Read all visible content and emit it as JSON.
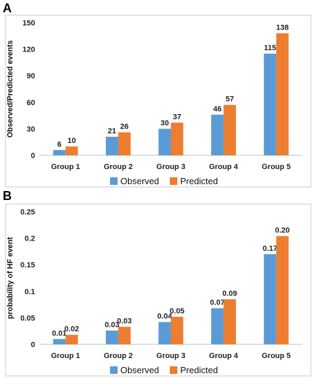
{
  "panels": {
    "a": {
      "letter": "A"
    },
    "b": {
      "letter": "B"
    }
  },
  "colors": {
    "observed": "#5B9BD5",
    "predicted": "#ED7D31"
  },
  "chart_data": [
    {
      "type": "bar",
      "categories": [
        "Group 1",
        "Group 2",
        "Group 3",
        "Group 4",
        "Group 5"
      ],
      "series": [
        {
          "name": "Observed",
          "values": [
            6,
            21,
            30,
            46,
            115
          ],
          "labels": [
            "6",
            "21",
            "30",
            "46",
            "115"
          ]
        },
        {
          "name": "Predicted",
          "values": [
            10,
            26,
            37,
            57,
            138
          ],
          "labels": [
            "10",
            "26",
            "37",
            "57",
            "138"
          ]
        }
      ],
      "ylabel": "Observed/Predicted events",
      "ylim": [
        0,
        150
      ],
      "yticks": [
        "0",
        "30",
        "60",
        "90",
        "120",
        "150"
      ],
      "grid": false,
      "legend": "bottom"
    },
    {
      "type": "bar",
      "categories": [
        "Group 1",
        "Group 2",
        "Group 3",
        "Group 4",
        "Group 5"
      ],
      "series": [
        {
          "name": "Observed",
          "values": [
            0.01,
            0.026,
            0.042,
            0.068,
            0.17
          ],
          "labels": [
            "0.01",
            "0.03",
            "0.04",
            "0.07",
            "0.17"
          ]
        },
        {
          "name": "Predicted",
          "values": [
            0.018,
            0.033,
            0.052,
            0.085,
            0.204
          ],
          "labels": [
            "0.02",
            "0.03",
            "0.05",
            "0.09",
            "0.20"
          ]
        }
      ],
      "ylabel": "probability of HF event",
      "ylim": [
        0,
        0.25
      ],
      "yticks": [
        "0",
        "0.05",
        "0.1",
        "0.15",
        "0.2",
        "0.25"
      ],
      "grid": false,
      "legend": "bottom"
    }
  ]
}
